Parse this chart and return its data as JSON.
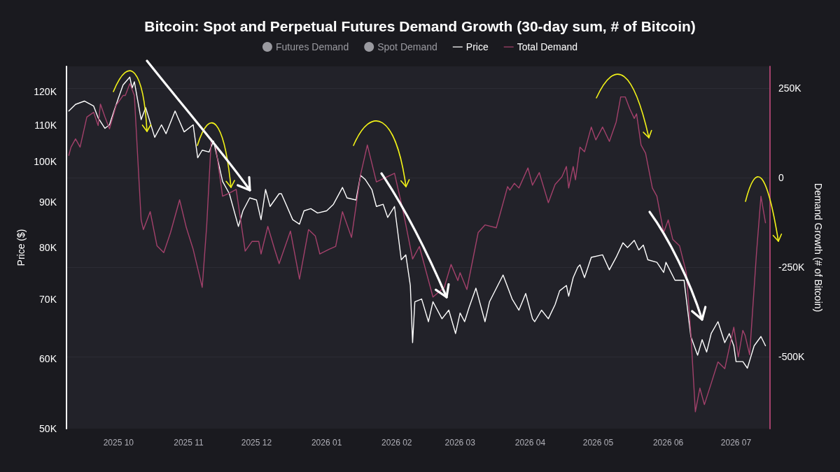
{
  "chart_data": {
    "type": "line",
    "title": "Bitcoin: Spot and Perpetual Futures Demand Growth (30-day sum, # of Bitcoin)",
    "ylabel": "Price ($)",
    "y2label": "Demand Growth (# of Bitcoin)",
    "legend": "top",
    "grid": "y",
    "log": "y",
    "marker": "none",
    "line_style": "solid",
    "xlim": [
      "2025-09-08",
      "2026-07-16"
    ],
    "xticks": [
      {
        "value": "2025-10-01",
        "label": "2025 10"
      },
      {
        "value": "2025-11-01",
        "label": "2025 11"
      },
      {
        "value": "2025-12-01",
        "label": "2025 12"
      },
      {
        "value": "2026-01-01",
        "label": "2026 01"
      },
      {
        "value": "2026-02-01",
        "label": "2026 02"
      },
      {
        "value": "2026-03-01",
        "label": "2026 03"
      },
      {
        "value": "2026-04-01",
        "label": "2026 04"
      },
      {
        "value": "2026-05-01",
        "label": "2026 05"
      },
      {
        "value": "2026-06-01",
        "label": "2026 06"
      },
      {
        "value": "2026-07-01",
        "label": "2026 07"
      }
    ],
    "ylim": [
      50000,
      128000
    ],
    "yticks": [
      {
        "value": 50000,
        "label": "50K"
      },
      {
        "value": 60000,
        "label": "60K"
      },
      {
        "value": 70000,
        "label": "70K"
      },
      {
        "value": 80000,
        "label": "80K"
      },
      {
        "value": 90000,
        "label": "90K"
      },
      {
        "value": 100000,
        "label": "100K"
      },
      {
        "value": 110000,
        "label": "110K"
      },
      {
        "value": 120000,
        "label": "120K"
      }
    ],
    "y2lim": [
      -700000,
      310000
    ],
    "y2ticks": [
      {
        "value": -500000,
        "label": "-500K"
      },
      {
        "value": -250000,
        "label": "-250K"
      },
      0,
      {
        "value": 250000,
        "label": "250K"
      }
    ],
    "series": [
      {
        "name": "Futures Demand",
        "color": "#9a9aa0"
      },
      {
        "name": "Spot Demand",
        "color": "#9a9aa0"
      },
      {
        "name": "Price",
        "color": "#ffffff",
        "x": [
          "2025-09-09",
          "2025-09-12",
          "2025-09-16",
          "2025-09-20",
          "2025-09-22",
          "2025-09-25",
          "2025-09-27",
          "2025-09-29",
          "2025-10-01",
          "2025-10-03",
          "2025-10-06",
          "2025-10-07",
          "2025-10-08",
          "2025-10-11",
          "2025-10-13",
          "2025-10-17",
          "2025-10-20",
          "2025-10-22",
          "2025-10-26",
          "2025-10-30",
          "2025-11-03",
          "2025-11-05",
          "2025-11-07",
          "2025-11-10",
          "2025-11-12",
          "2025-11-16",
          "2025-11-19",
          "2025-11-23",
          "2025-11-25",
          "2025-11-28",
          "2025-12-01",
          "2025-12-03",
          "2025-12-05",
          "2025-12-07",
          "2025-12-11",
          "2025-12-12",
          "2025-12-17",
          "2025-12-20",
          "2025-12-22",
          "2025-12-25",
          "2025-12-28",
          "2026-01-01",
          "2026-01-04",
          "2026-01-08",
          "2026-01-10",
          "2026-01-14",
          "2026-01-16",
          "2026-01-18",
          "2026-01-21",
          "2026-01-23",
          "2026-01-26",
          "2026-01-28",
          "2026-01-31",
          "2026-02-03",
          "2026-02-05",
          "2026-02-07",
          "2026-02-08",
          "2026-02-09",
          "2026-02-12",
          "2026-02-15",
          "2026-02-17",
          "2026-02-21",
          "2026-02-24",
          "2026-02-27",
          "2026-03-01",
          "2026-03-03",
          "2026-03-05",
          "2026-03-08",
          "2026-03-12",
          "2026-03-14",
          "2026-03-20",
          "2026-03-24",
          "2026-03-27",
          "2026-03-30",
          "2026-04-02",
          "2026-04-03",
          "2026-04-06",
          "2026-04-09",
          "2026-04-12",
          "2026-04-14",
          "2026-04-17",
          "2026-04-18",
          "2026-04-20",
          "2026-04-22",
          "2026-04-23",
          "2026-04-25",
          "2026-04-28",
          "2026-05-03",
          "2026-05-06",
          "2026-05-09",
          "2026-05-12",
          "2026-05-14",
          "2026-05-17",
          "2026-05-19",
          "2026-05-21",
          "2026-05-23",
          "2026-05-27",
          "2026-05-30",
          "2026-05-31",
          "2026-06-04",
          "2026-06-08",
          "2026-06-11",
          "2026-06-14",
          "2026-06-16",
          "2026-06-18",
          "2026-06-20",
          "2026-06-23",
          "2026-06-26",
          "2026-06-28",
          "2026-06-30",
          "2026-07-01",
          "2026-07-04",
          "2026-07-06",
          "2026-07-09",
          "2026-07-12",
          "2026-07-14"
        ],
        "values": [
          114000,
          116000,
          117000,
          115500,
          112000,
          109000,
          110000,
          114000,
          118000,
          122000,
          124500,
          121000,
          123000,
          111500,
          115000,
          106500,
          110000,
          107500,
          114000,
          108000,
          110000,
          101000,
          103000,
          102500,
          105500,
          95000,
          92000,
          84500,
          88000,
          91000,
          90500,
          86000,
          93000,
          89000,
          92000,
          92000,
          86000,
          85000,
          88000,
          88500,
          87500,
          88000,
          89500,
          93500,
          91000,
          90500,
          96500,
          95500,
          93000,
          89000,
          89500,
          86500,
          89000,
          77500,
          78500,
          72500,
          62500,
          69500,
          70000,
          66000,
          69500,
          66500,
          68000,
          64000,
          67500,
          66000,
          68500,
          72000,
          66000,
          69500,
          74500,
          70000,
          68000,
          71000,
          66500,
          66000,
          68000,
          66500,
          69000,
          71500,
          72500,
          70500,
          74000,
          76000,
          76500,
          74000,
          78000,
          78500,
          75500,
          78000,
          81000,
          80000,
          81500,
          79500,
          80500,
          77500,
          77000,
          75000,
          77000,
          73500,
          73500,
          63500,
          60500,
          63000,
          61000,
          64000,
          66000,
          62500,
          64000,
          62000,
          59500,
          59500,
          58500,
          62000,
          63500,
          62000
        ]
      },
      {
        "name": "Total Demand",
        "color": "#a3416b",
        "axis": "y2",
        "x": [
          "2025-09-09",
          "2025-09-10",
          "2025-09-12",
          "2025-09-14",
          "2025-09-17",
          "2025-09-20",
          "2025-09-22",
          "2025-09-23",
          "2025-09-25",
          "2025-09-27",
          "2025-09-30",
          "2025-10-03",
          "2025-10-04",
          "2025-10-06",
          "2025-10-08",
          "2025-10-11",
          "2025-10-12",
          "2025-10-15",
          "2025-10-18",
          "2025-10-21",
          "2025-10-24",
          "2025-10-28",
          "2025-10-31",
          "2025-11-03",
          "2025-11-07",
          "2025-11-09",
          "2025-11-11",
          "2025-11-13",
          "2025-11-16",
          "2025-11-19",
          "2025-11-22",
          "2025-11-26",
          "2025-11-29",
          "2025-12-02",
          "2025-12-03",
          "2025-12-06",
          "2025-12-09",
          "2025-12-11",
          "2025-12-16",
          "2025-12-20",
          "2025-12-24",
          "2025-12-27",
          "2025-12-29",
          "2026-01-02",
          "2026-01-05",
          "2026-01-08",
          "2026-01-12",
          "2026-01-16",
          "2026-01-19",
          "2026-01-23",
          "2026-01-31",
          "2026-02-04",
          "2026-02-08",
          "2026-02-11",
          "2026-02-17",
          "2026-02-22",
          "2026-02-25",
          "2026-02-28",
          "2026-03-01",
          "2026-03-04",
          "2026-03-09",
          "2026-03-12",
          "2026-03-17",
          "2026-03-22",
          "2026-03-23",
          "2026-03-25",
          "2026-03-27",
          "2026-03-31",
          "2026-04-02",
          "2026-04-05",
          "2026-04-09",
          "2026-04-12",
          "2026-04-15",
          "2026-04-17",
          "2026-04-18",
          "2026-04-20",
          "2026-04-21",
          "2026-04-23",
          "2026-04-25",
          "2026-04-28",
          "2026-04-30",
          "2026-05-03",
          "2026-05-06",
          "2026-05-09",
          "2026-05-11",
          "2026-05-13",
          "2026-05-15",
          "2026-05-17",
          "2026-05-18",
          "2026-05-20",
          "2026-05-22",
          "2026-05-25",
          "2026-05-27",
          "2026-05-30",
          "2026-06-01",
          "2026-06-03",
          "2026-06-06",
          "2026-06-09",
          "2026-06-11",
          "2026-06-13",
          "2026-06-15",
          "2026-06-17",
          "2026-06-20",
          "2026-06-23",
          "2026-06-26",
          "2026-06-30",
          "2026-07-02",
          "2026-07-04",
          "2026-07-05",
          "2026-07-07",
          "2026-07-10",
          "2026-07-12",
          "2026-07-14"
        ],
        "values": [
          62000,
          85000,
          108000,
          85000,
          169000,
          182000,
          145000,
          205000,
          169000,
          136000,
          202000,
          229000,
          229000,
          262000,
          229000,
          -118000,
          -145000,
          -95000,
          -190000,
          -209000,
          -153000,
          -62000,
          -140000,
          -200000,
          -306000,
          -132000,
          108000,
          85000,
          -52000,
          -43000,
          -33000,
          -205000,
          -178000,
          -178000,
          -213000,
          -136000,
          -200000,
          -240000,
          -149000,
          -283000,
          -145000,
          -163000,
          -213000,
          -200000,
          -192000,
          -95000,
          -167000,
          8000,
          91000,
          -12000,
          12000,
          -99000,
          -227000,
          -192000,
          -333000,
          -306000,
          -242000,
          -287000,
          -265000,
          -312000,
          -153000,
          -132000,
          -140000,
          -25000,
          -35000,
          -16000,
          -29000,
          27000,
          -21000,
          14000,
          -70000,
          -19000,
          2000,
          31000,
          -29000,
          31000,
          -6000,
          85000,
          72000,
          141000,
          105000,
          141000,
          101000,
          155000,
          225000,
          225000,
          192000,
          165000,
          178000,
          91000,
          68000,
          -29000,
          -52000,
          -153000,
          -118000,
          -172000,
          -190000,
          -265000,
          -434000,
          -653000,
          -587000,
          -633000,
          -574000,
          -514000,
          -533000,
          -417000,
          -500000,
          -426000,
          -440000,
          -494000,
          -213000,
          -52000,
          -126000
        ]
      }
    ]
  }
}
